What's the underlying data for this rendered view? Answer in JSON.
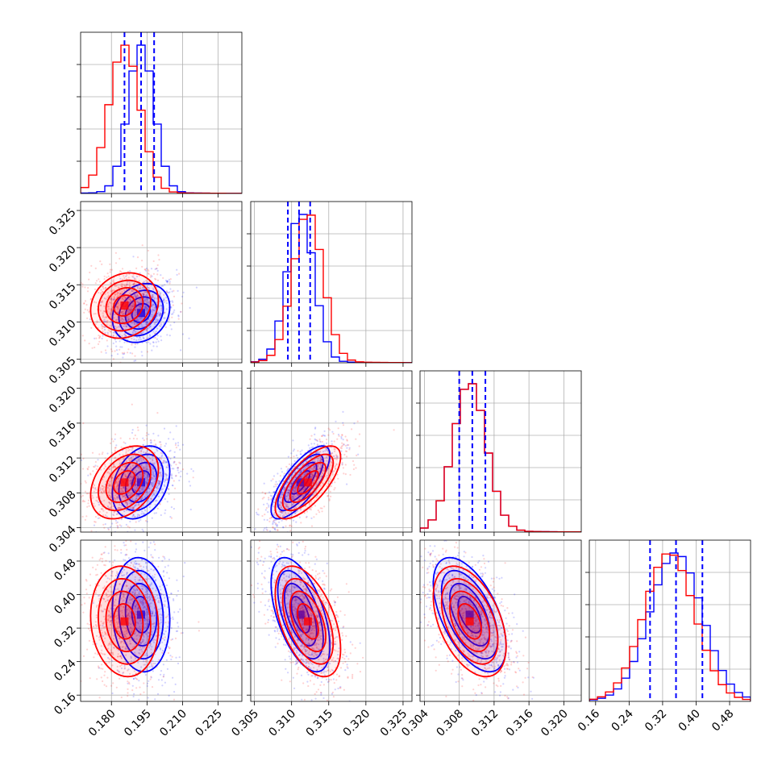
{
  "chart_data": {
    "type": "corner",
    "parameters": 4,
    "series": [
      {
        "name": "",
        "color": "#0000ff",
        "means": [
          0.1925,
          0.3112,
          0.3092,
          0.352
        ],
        "sigmas": [
          0.0055,
          0.0018,
          0.0019,
          0.062
        ],
        "rho": [
          [
            1,
            0.2,
            0.3,
            -0.1
          ],
          [
            0.2,
            1,
            0.75,
            -0.55
          ],
          [
            0.3,
            0.75,
            1,
            -0.55
          ],
          [
            -0.1,
            -0.55,
            -0.55,
            1
          ]
        ]
      },
      {
        "name": "",
        "color": "#ff0000",
        "means": [
          0.1855,
          0.3122,
          0.3092,
          0.336
        ],
        "sigmas": [
          0.0065,
          0.002,
          0.0019,
          0.06
        ],
        "rho": [
          [
            1,
            0.15,
            0.35,
            -0.1
          ],
          [
            0.15,
            1,
            0.7,
            -0.5
          ],
          [
            0.35,
            0.7,
            1,
            -0.45
          ],
          [
            -0.1,
            -0.5,
            -0.45,
            1
          ]
        ]
      }
    ],
    "ranges": [
      [
        0.167,
        0.235
      ],
      [
        0.3045,
        0.3262
      ],
      [
        0.3035,
        0.322
      ],
      [
        0.145,
        0.53
      ]
    ],
    "ticks": [
      [
        "0.180",
        "0.195",
        "0.210",
        "0.225"
      ],
      [
        "0.305",
        "0.310",
        "0.315",
        "0.320",
        "0.325"
      ],
      [
        "0.304",
        "0.308",
        "0.312",
        "0.316",
        "0.320"
      ],
      [
        "0.16",
        "0.24",
        "0.32",
        "0.40",
        "0.48"
      ]
    ],
    "tick_values": [
      [
        0.18,
        0.195,
        0.21,
        0.225
      ],
      [
        0.305,
        0.31,
        0.315,
        0.32,
        0.325
      ],
      [
        0.304,
        0.308,
        0.312,
        0.316,
        0.32
      ],
      [
        0.16,
        0.24,
        0.32,
        0.4,
        0.48
      ]
    ],
    "quantile_lines_color": "#0000ff",
    "quantiles": [
      [
        0.1855,
        0.1925,
        0.198
      ],
      [
        0.3095,
        0.311,
        0.3125
      ],
      [
        0.308,
        0.3095,
        0.311
      ],
      [
        0.29,
        0.352,
        0.415
      ]
    ],
    "grid": true
  }
}
